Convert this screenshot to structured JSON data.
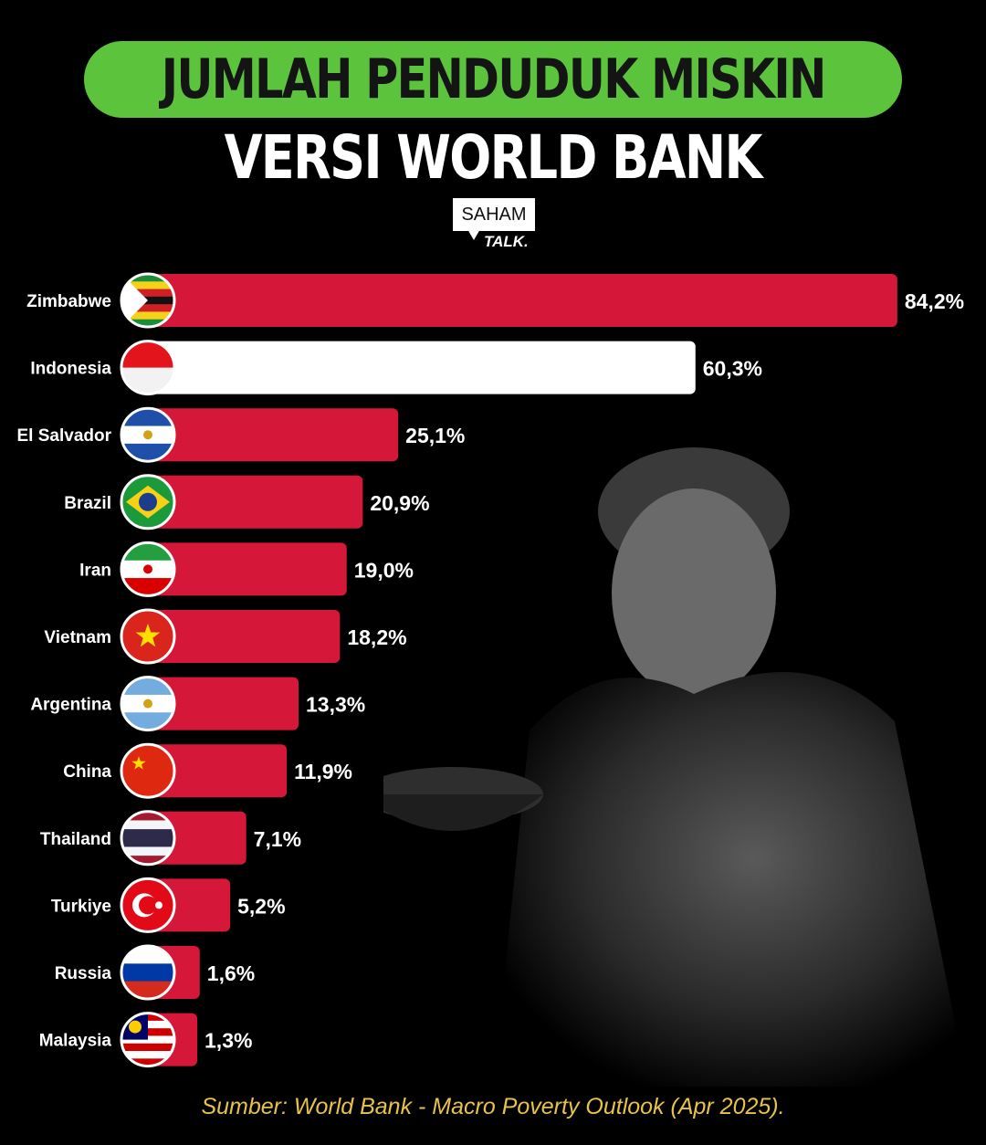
{
  "header": {
    "title": "JUMLAH PENDUDUK MISKIN",
    "subtitle": "VERSI WORLD BANK",
    "logo_top": "SAHAM",
    "logo_bottom": "TALK."
  },
  "colors": {
    "bar": "#d5173a",
    "highlight": "#ffffff",
    "title_pill": "#5cc43c",
    "source": "#e8c24a"
  },
  "chart_data": {
    "type": "bar",
    "orientation": "horizontal",
    "title": "JUMLAH PENDUDUK MISKIN VERSI WORLD BANK",
    "categories": [
      "Zimbabwe",
      "Indonesia",
      "El Salvador",
      "Brazil",
      "Iran",
      "Vietnam",
      "Argentina",
      "China",
      "Thailand",
      "Turkiye",
      "Russia",
      "Malaysia"
    ],
    "values": [
      84.2,
      60.3,
      25.1,
      20.9,
      19.0,
      18.2,
      13.3,
      11.9,
      7.1,
      5.2,
      1.6,
      1.3
    ],
    "data_labels": [
      "84,2%",
      "60,3%",
      "25,1%",
      "20,9%",
      "19,0%",
      "18,2%",
      "13,3%",
      "11,9%",
      "7,1%",
      "5,2%",
      "1,6%",
      "1,3%"
    ],
    "highlight": "Indonesia",
    "unit": "%",
    "flag_icons": [
      "zimbabwe-flag",
      "indonesia-flag",
      "el-salvador-flag",
      "brazil-flag",
      "iran-flag",
      "vietnam-flag",
      "argentina-flag",
      "china-flag",
      "thailand-flag",
      "turkiye-flag",
      "russia-flag",
      "malaysia-flag"
    ]
  },
  "footer": {
    "source": "Sumber: World Bank - Macro Poverty Outlook (Apr 2025)."
  }
}
